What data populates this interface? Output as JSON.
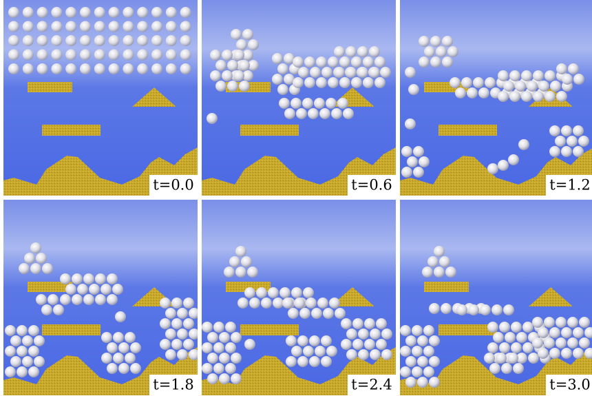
{
  "panels": [
    {
      "label": "t=0.0"
    },
    {
      "label": "t=0.6"
    },
    {
      "label": "t=1.2"
    },
    {
      "label": "t=1.8"
    },
    {
      "label": "t=2.4"
    },
    {
      "label": "t=3.0"
    }
  ]
}
